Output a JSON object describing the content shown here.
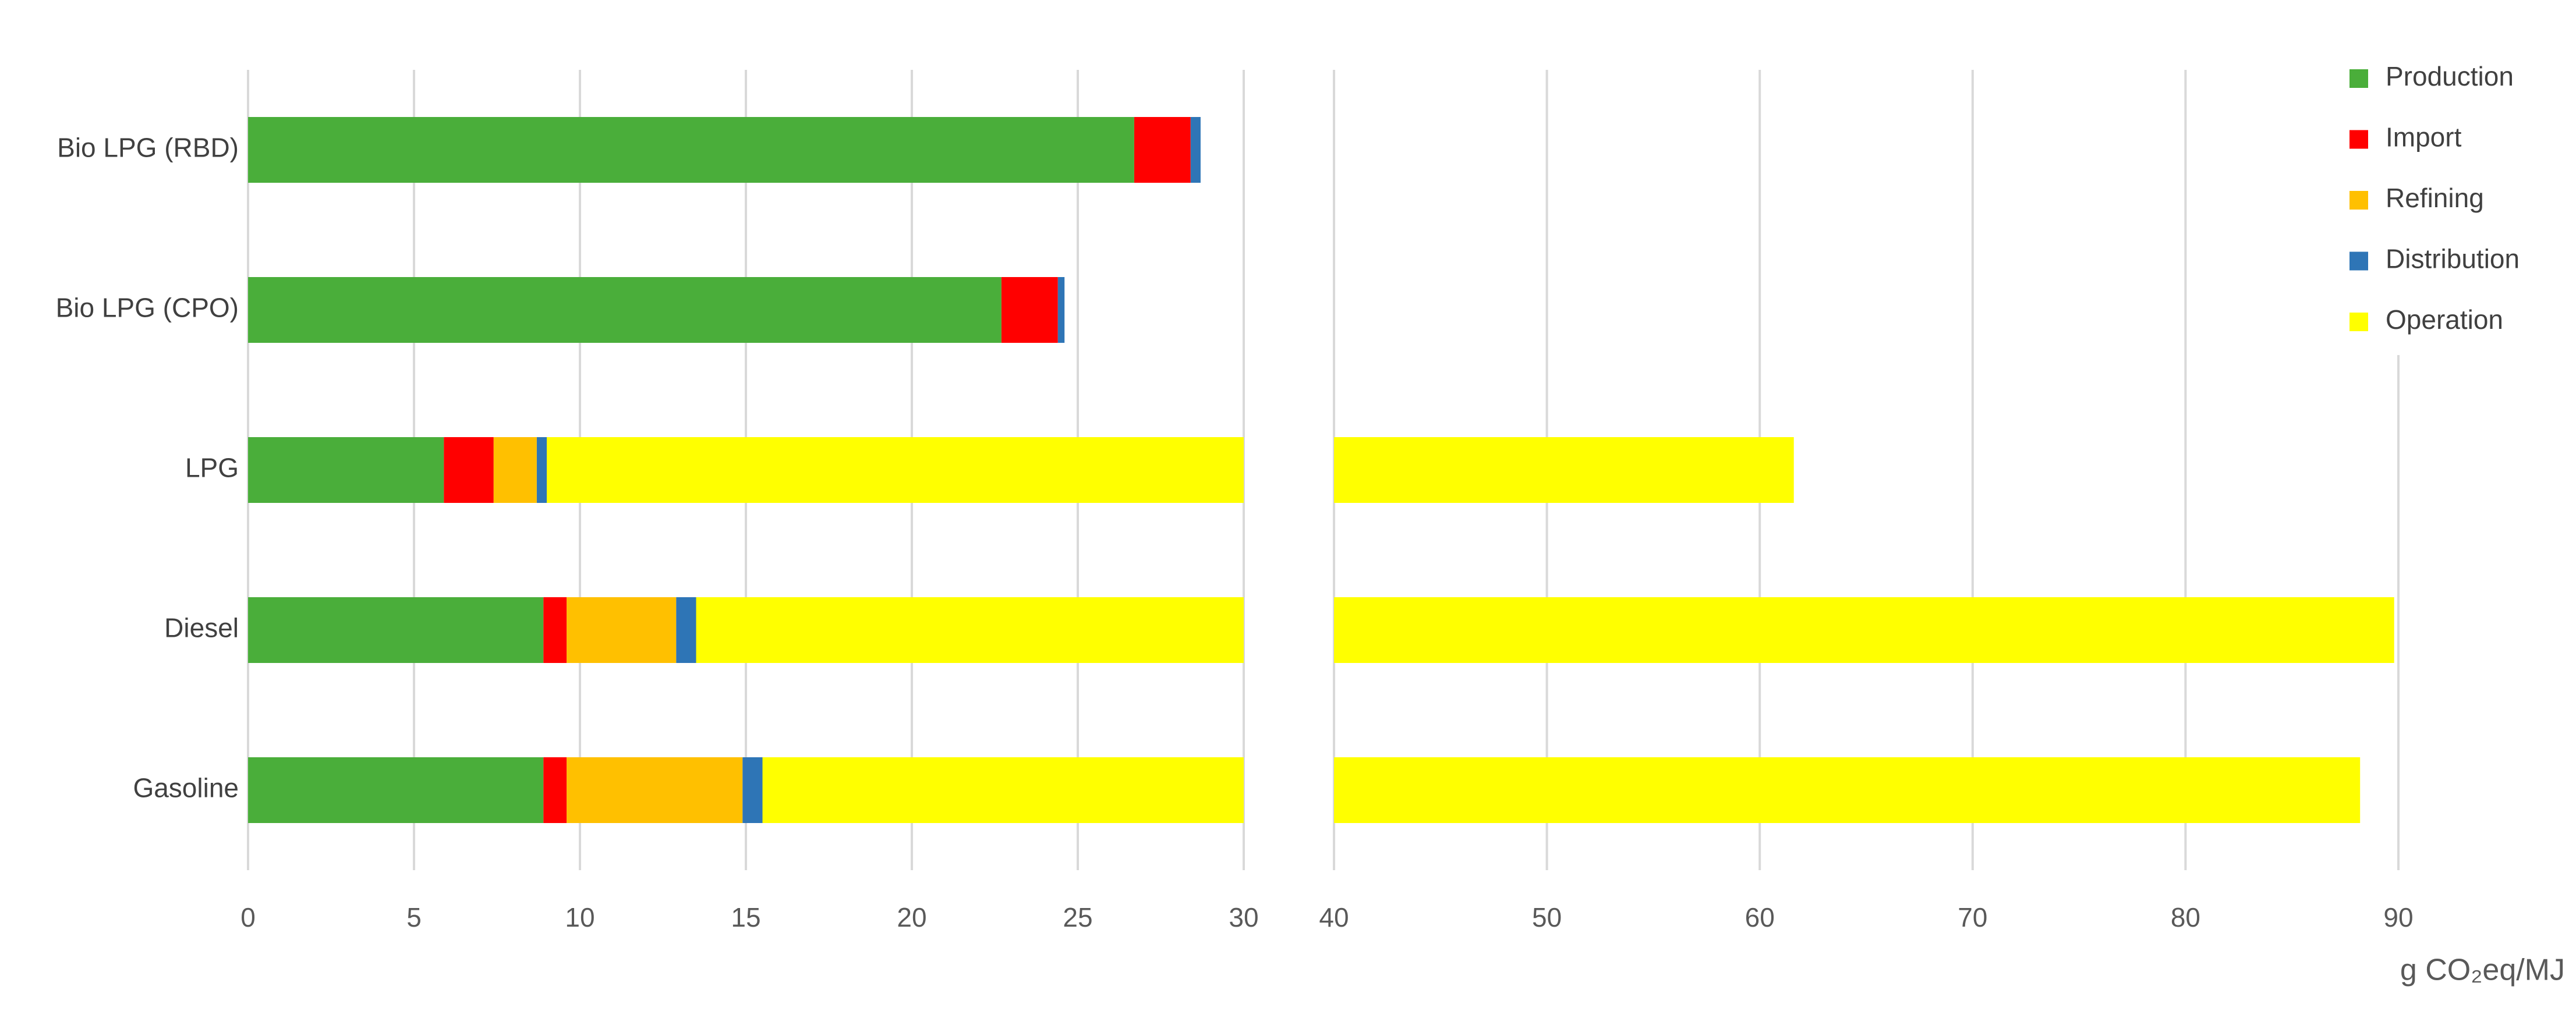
{
  "chart_data": {
    "type": "stacked-bar-horizontal",
    "categories": [
      "Bio LPG (RBD)",
      "Bio LPG (CPO)",
      "LPG",
      "Diesel",
      "Gasoline"
    ],
    "series": [
      {
        "name": "Production",
        "color": "#4aae3a",
        "values": [
          26.7,
          22.7,
          5.9,
          8.9,
          8.9
        ]
      },
      {
        "name": "Import",
        "color": "#ff0000",
        "values": [
          1.7,
          1.7,
          1.5,
          0.7,
          0.7
        ]
      },
      {
        "name": "Refining",
        "color": "#ffc000",
        "values": [
          0,
          0,
          1.3,
          3.3,
          5.3
        ]
      },
      {
        "name": "Distribution",
        "color": "#2e75b6",
        "values": [
          0.3,
          0.2,
          0.3,
          0.6,
          0.6
        ]
      },
      {
        "name": "Operation",
        "color": "#ffff00",
        "values": [
          0,
          0,
          52.6,
          76.3,
          72.7
        ]
      }
    ],
    "xlim": [
      0,
      90
    ],
    "xbreak": [
      30,
      40
    ],
    "xticks": [
      0,
      5,
      10,
      15,
      20,
      25,
      30,
      40,
      50,
      60,
      70,
      80,
      90
    ],
    "x_label": "g CO₂eq/MJ",
    "grid": true,
    "legend": "upper right"
  }
}
